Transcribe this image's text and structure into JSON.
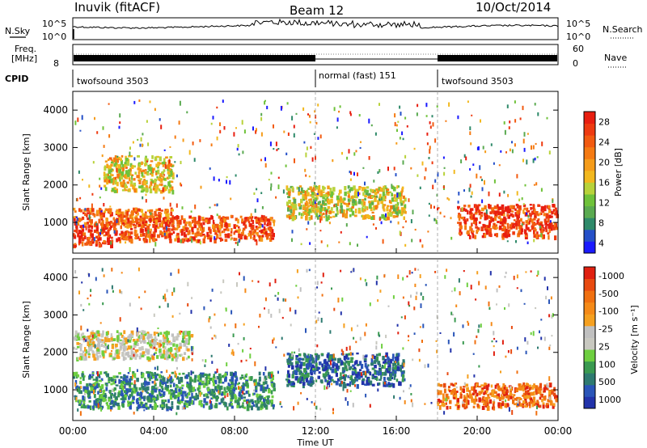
{
  "header": {
    "station": "Inuvik (fitACF)",
    "beam": "Beam 12",
    "date": "10/Oct/2014"
  },
  "noise_panel": {
    "left_label": "N.Sky",
    "right_label": "N.Search",
    "y_ticks": [
      "10^5",
      "10^0"
    ]
  },
  "freq_panel": {
    "left_label_1": "Freq.",
    "left_label_2": "[MHz]",
    "left_tick": "8",
    "right_label": "Nave",
    "right_ticks": [
      "60",
      "0"
    ]
  },
  "cpid_panel": {
    "label": "CPID",
    "segments": [
      "twofsound 3503",
      "normal (fast) 151",
      "twofsound 3503"
    ]
  },
  "chart_data": [
    {
      "type": "heatmap",
      "title": "",
      "ylabel": "Slant Range [km]",
      "xlabel": "",
      "y_ticks": [
        1000,
        2000,
        3000,
        4000
      ],
      "ylim": [
        180,
        4500
      ],
      "xlim": [
        "00:00",
        "24:00"
      ],
      "colorbar": {
        "label": "Power [dB]",
        "ticks": [
          "4",
          "8",
          "12",
          "16",
          "20",
          "24",
          "28"
        ],
        "colors": [
          "#1a1aff",
          "#2550c8",
          "#2f8a6a",
          "#5aaa50",
          "#6fc23a",
          "#b8d23a",
          "#f2b81e",
          "#f59c1a",
          "#f57a12",
          "#f25a10",
          "#ee3a10",
          "#e81e10"
        ]
      },
      "series": [
        {
          "regions_hours_km": [
            {
              "t": [
                0.0,
                2.0
              ],
              "r": [
                350,
                1000
              ],
              "level": 0.95
            },
            {
              "t": [
                0.0,
                5.0
              ],
              "r": [
                900,
                1400
              ],
              "level": 0.75
            },
            {
              "t": [
                2.0,
                10.0
              ],
              "r": [
                500,
                1200
              ],
              "level": 0.85
            },
            {
              "t": [
                1.5,
                5.0
              ],
              "r": [
                1800,
                2800
              ],
              "level": 0.55
            },
            {
              "t": [
                10.5,
                16.5
              ],
              "r": [
                1100,
                2000
              ],
              "level": 0.5
            },
            {
              "t": [
                19.0,
                24.0
              ],
              "r": [
                600,
                1500
              ],
              "level": 0.9
            }
          ]
        }
      ]
    },
    {
      "type": "heatmap",
      "title": "",
      "ylabel": "Slant Range [km]",
      "xlabel": "Time UT",
      "x_ticks": [
        "00:00",
        "04:00",
        "08:00",
        "12:00",
        "16:00",
        "20:00",
        "00:00"
      ],
      "y_ticks": [
        1000,
        2000,
        3000,
        4000
      ],
      "ylim": [
        180,
        4500
      ],
      "colorbar": {
        "label": "Velocity [m s⁻¹]",
        "ticks": [
          "1000",
          "500",
          "100",
          "25",
          "-25",
          "-100",
          "-500",
          "-1000"
        ],
        "colors": [
          "#2233aa",
          "#2a55b8",
          "#2e7a70",
          "#3a9a50",
          "#6ecf40",
          "#c8c8c0",
          "#c0c0c0",
          "#f5a020",
          "#f58a18",
          "#f07010",
          "#e84a10",
          "#e02010"
        ]
      },
      "series": [
        {
          "regions_hours_km": [
            {
              "t": [
                0.0,
                10.0
              ],
              "r": [
                500,
                1500
              ],
              "velocity": "25 to 500"
            },
            {
              "t": [
                0.0,
                6.0
              ],
              "r": [
                1800,
                2600
              ],
              "velocity": "-25 to 25"
            },
            {
              "t": [
                10.5,
                16.5
              ],
              "r": [
                1100,
                2000
              ],
              "velocity": "100 to 1000"
            },
            {
              "t": [
                18.0,
                24.0
              ],
              "r": [
                500,
                1200
              ],
              "velocity": "-1000 to -100"
            }
          ]
        }
      ]
    }
  ]
}
